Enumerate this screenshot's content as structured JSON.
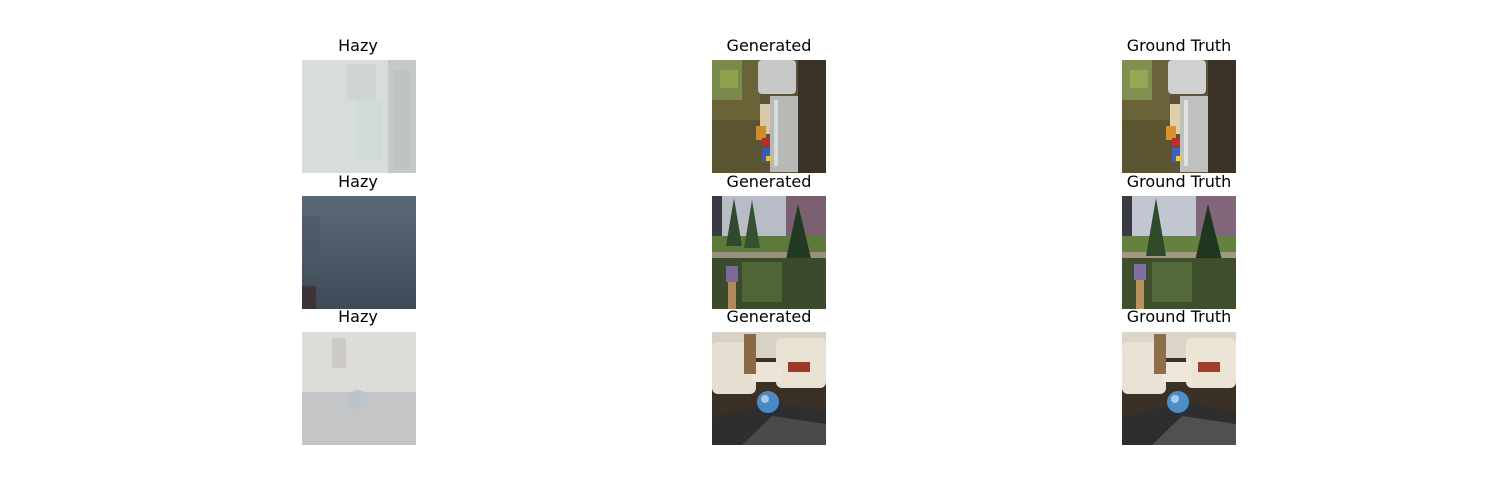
{
  "figure": {
    "rows": [
      {
        "hazy_title": "Hazy",
        "generated_title": "Generated",
        "ground_truth_title": "Ground Truth",
        "scene": "kitchen-countertop"
      },
      {
        "hazy_title": "Hazy",
        "generated_title": "Generated",
        "ground_truth_title": "Ground Truth",
        "scene": "garden"
      },
      {
        "hazy_title": "Hazy",
        "generated_title": "Generated",
        "ground_truth_title": "Ground Truth",
        "scene": "living-room-sofa"
      }
    ]
  },
  "colors": {
    "background": "#ffffff",
    "title_text": "#000000",
    "haze_light": "#d8dcdc",
    "haze_blue": "#5a6a7a",
    "foliage": "#2f4a2a",
    "sofa": "#e6ded0",
    "globe": "#4a8ac4"
  }
}
